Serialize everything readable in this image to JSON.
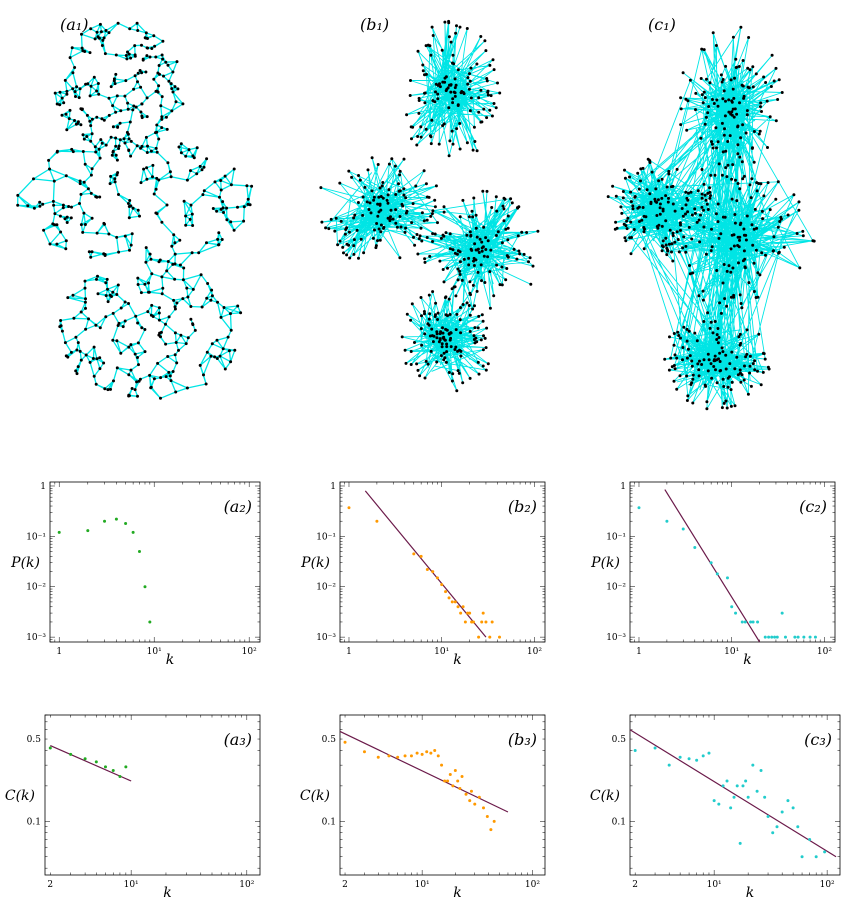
{
  "networks": [
    {
      "label": "(a₁)",
      "edge_color": "#00e5e5",
      "node_color": "#000000",
      "shape": "lattice-like with three lobes"
    },
    {
      "label": "(b₁)",
      "edge_color": "#00e5e5",
      "node_color": "#000000",
      "shape": "four hub-centered clusters"
    },
    {
      "label": "(c₁)",
      "edge_color": "#00e5e5",
      "node_color": "#000000",
      "shape": "dense hub clusters with long-range links"
    }
  ],
  "colors": {
    "a": "#22aa22",
    "b": "#ff9900",
    "c": "#22cccc",
    "fit": "#6b1a4a"
  },
  "chart_data": [
    {
      "id": "a2",
      "type": "scatter",
      "label": "(a₂)",
      "xscale": "log",
      "yscale": "log",
      "xlabel": "k",
      "ylabel": "P(k)",
      "xlim": [
        0.8,
        130
      ],
      "ylim": [
        0.0008,
        1.2
      ],
      "xticks": [
        "1",
        "10¹",
        "10²"
      ],
      "yticks": [
        "1",
        "10⁻¹",
        "10⁻²",
        "10⁻³"
      ],
      "color": "#22aa22",
      "points": [
        [
          1,
          0.12
        ],
        [
          2,
          0.13
        ],
        [
          3,
          0.2
        ],
        [
          4,
          0.22
        ],
        [
          5,
          0.18
        ],
        [
          6,
          0.12
        ],
        [
          7,
          0.05
        ],
        [
          8,
          0.01
        ],
        [
          9,
          0.002
        ]
      ],
      "fit": null
    },
    {
      "id": "b2",
      "type": "scatter",
      "label": "(b₂)",
      "xscale": "log",
      "yscale": "log",
      "xlabel": "k",
      "ylabel": "P(k)",
      "xlim": [
        0.8,
        130
      ],
      "ylim": [
        0.0008,
        1.2
      ],
      "xticks": [
        "1",
        "10¹",
        "10²"
      ],
      "yticks": [
        "1",
        "10⁻¹",
        "10⁻²",
        "10⁻³"
      ],
      "color": "#ff9900",
      "points": [
        [
          1,
          0.37
        ],
        [
          2,
          0.2
        ],
        [
          5,
          0.045
        ],
        [
          6,
          0.04
        ],
        [
          7,
          0.022
        ],
        [
          8,
          0.02
        ],
        [
          9,
          0.015
        ],
        [
          10,
          0.011
        ],
        [
          11,
          0.008
        ],
        [
          12,
          0.006
        ],
        [
          13,
          0.005
        ],
        [
          14,
          0.005
        ],
        [
          15,
          0.004
        ],
        [
          16,
          0.003
        ],
        [
          17,
          0.004
        ],
        [
          18,
          0.002
        ],
        [
          19,
          0.003
        ],
        [
          20,
          0.003
        ],
        [
          21,
          0.002
        ],
        [
          22,
          0.002
        ],
        [
          25,
          0.001
        ],
        [
          27,
          0.002
        ],
        [
          28,
          0.003
        ],
        [
          30,
          0.002
        ],
        [
          33,
          0.001
        ],
        [
          35,
          0.002
        ],
        [
          42,
          0.001
        ]
      ],
      "fit": [
        [
          1.5,
          0.8
        ],
        [
          30,
          0.001
        ]
      ]
    },
    {
      "id": "c2",
      "type": "scatter",
      "label": "(c₂)",
      "xscale": "log",
      "yscale": "log",
      "xlabel": "k",
      "ylabel": "P(k)",
      "xlim": [
        0.8,
        130
      ],
      "ylim": [
        0.0008,
        1.2
      ],
      "xticks": [
        "1",
        "10¹",
        "10²"
      ],
      "yticks": [
        "1",
        "10⁻¹",
        "10⁻²",
        "10⁻³"
      ],
      "color": "#22cccc",
      "points": [
        [
          1,
          0.37
        ],
        [
          2,
          0.2
        ],
        [
          3,
          0.14
        ],
        [
          4,
          0.06
        ],
        [
          6,
          0.03
        ],
        [
          7,
          0.018
        ],
        [
          9,
          0.015
        ],
        [
          10,
          0.004
        ],
        [
          11,
          0.003
        ],
        [
          13,
          0.002
        ],
        [
          14,
          0.002
        ],
        [
          16,
          0.002
        ],
        [
          17,
          0.002
        ],
        [
          19,
          0.002
        ],
        [
          23,
          0.001
        ],
        [
          25,
          0.001
        ],
        [
          27,
          0.001
        ],
        [
          29,
          0.001
        ],
        [
          31,
          0.001
        ],
        [
          35,
          0.003
        ],
        [
          38,
          0.001
        ],
        [
          48,
          0.001
        ],
        [
          52,
          0.001
        ],
        [
          60,
          0.001
        ],
        [
          70,
          0.001
        ],
        [
          80,
          0.001
        ]
      ],
      "fit": [
        [
          1.9,
          0.85
        ],
        [
          20,
          0.0008
        ]
      ]
    },
    {
      "id": "a3",
      "type": "scatter",
      "label": "(a₃)",
      "xscale": "log",
      "yscale": "log",
      "xlabel": "k",
      "ylabel": "C(k)",
      "xlim": [
        1.8,
        130
      ],
      "ylim": [
        0.035,
        0.8
      ],
      "xticks": [
        "2",
        "10¹",
        "10²"
      ],
      "yticks": [
        "0.5",
        "0.1"
      ],
      "color": "#22aa22",
      "points": [
        [
          2,
          0.42
        ],
        [
          3,
          0.37
        ],
        [
          4,
          0.34
        ],
        [
          5,
          0.32
        ],
        [
          6,
          0.29
        ],
        [
          7,
          0.27
        ],
        [
          8,
          0.24
        ],
        [
          9,
          0.29
        ]
      ],
      "fit": [
        [
          2,
          0.44
        ],
        [
          10,
          0.22
        ]
      ]
    },
    {
      "id": "b3",
      "type": "scatter",
      "label": "(b₃)",
      "xscale": "log",
      "yscale": "log",
      "xlabel": "k",
      "ylabel": "C(k)",
      "xlim": [
        1.8,
        130
      ],
      "ylim": [
        0.035,
        0.8
      ],
      "xticks": [
        "2",
        "10¹",
        "10²"
      ],
      "yticks": [
        "0.5",
        "0.1"
      ],
      "color": "#ff9900",
      "points": [
        [
          2,
          0.47
        ],
        [
          3,
          0.39
        ],
        [
          4,
          0.35
        ],
        [
          5,
          0.36
        ],
        [
          6,
          0.35
        ],
        [
          7,
          0.36
        ],
        [
          8,
          0.36
        ],
        [
          9,
          0.38
        ],
        [
          10,
          0.37
        ],
        [
          11,
          0.39
        ],
        [
          12,
          0.38
        ],
        [
          13,
          0.4
        ],
        [
          14,
          0.36
        ],
        [
          15,
          0.3
        ],
        [
          16,
          0.22
        ],
        [
          17,
          0.22
        ],
        [
          18,
          0.25
        ],
        [
          19,
          0.2
        ],
        [
          20,
          0.27
        ],
        [
          21,
          0.22
        ],
        [
          22,
          0.19
        ],
        [
          23,
          0.24
        ],
        [
          25,
          0.17
        ],
        [
          27,
          0.15
        ],
        [
          28,
          0.18
        ],
        [
          30,
          0.14
        ],
        [
          33,
          0.16
        ],
        [
          36,
          0.13
        ],
        [
          39,
          0.11
        ],
        [
          42,
          0.085
        ],
        [
          45,
          0.1
        ]
      ],
      "fit": [
        [
          1.8,
          0.58
        ],
        [
          60,
          0.12
        ]
      ]
    },
    {
      "id": "c3",
      "type": "scatter",
      "label": "(c₃)",
      "xscale": "log",
      "yscale": "log",
      "xlabel": "k",
      "ylabel": "C(k)",
      "xlim": [
        1.8,
        130
      ],
      "ylim": [
        0.035,
        0.8
      ],
      "xticks": [
        "2",
        "10¹",
        "10²"
      ],
      "yticks": [
        "0.5",
        "0.1"
      ],
      "color": "#22cccc",
      "points": [
        [
          2,
          0.4
        ],
        [
          3,
          0.42
        ],
        [
          4,
          0.3
        ],
        [
          5,
          0.35
        ],
        [
          6,
          0.34
        ],
        [
          7,
          0.33
        ],
        [
          8,
          0.36
        ],
        [
          9,
          0.38
        ],
        [
          10,
          0.15
        ],
        [
          11,
          0.14
        ],
        [
          12,
          0.2
        ],
        [
          13,
          0.22
        ],
        [
          14,
          0.13
        ],
        [
          15,
          0.16
        ],
        [
          16,
          0.2
        ],
        [
          17,
          0.065
        ],
        [
          18,
          0.2
        ],
        [
          19,
          0.22
        ],
        [
          20,
          0.16
        ],
        [
          22,
          0.3
        ],
        [
          24,
          0.18
        ],
        [
          26,
          0.27
        ],
        [
          28,
          0.16
        ],
        [
          30,
          0.11
        ],
        [
          33,
          0.08
        ],
        [
          36,
          0.09
        ],
        [
          40,
          0.12
        ],
        [
          45,
          0.15
        ],
        [
          50,
          0.13
        ],
        [
          55,
          0.09
        ],
        [
          60,
          0.05
        ],
        [
          70,
          0.07
        ],
        [
          80,
          0.05
        ],
        [
          95,
          0.055
        ]
      ],
      "fit": [
        [
          1.8,
          0.6
        ],
        [
          120,
          0.05
        ]
      ]
    }
  ]
}
